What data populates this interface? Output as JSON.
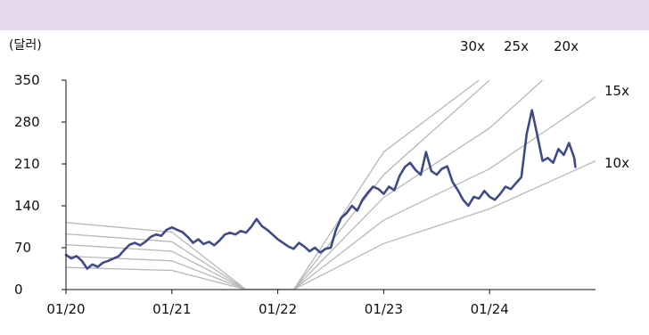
{
  "header": {
    "band_color": "#e6d8ec"
  },
  "chart_data": {
    "type": "line",
    "title": "",
    "unit_label": "(달러)",
    "xlabel": "",
    "ylabel": "",
    "ylim": [
      0,
      350
    ],
    "yticks": [
      0,
      70,
      140,
      210,
      280,
      350
    ],
    "x_tick_labels": [
      "01/20",
      "01/21",
      "01/22",
      "01/23",
      "01/24"
    ],
    "x_tick_years": [
      2020,
      2021,
      2022,
      2023,
      2024
    ],
    "xlim_years": [
      2020.0,
      2025.0
    ],
    "grid": false,
    "band_labels": [
      "30x",
      "25x",
      "20x",
      "15x",
      "10x"
    ],
    "series": [
      {
        "name": "",
        "color": "#3f4b86",
        "points": [
          [
            2020.0,
            58
          ],
          [
            2020.05,
            52
          ],
          [
            2020.1,
            56
          ],
          [
            2020.15,
            48
          ],
          [
            2020.2,
            35
          ],
          [
            2020.25,
            42
          ],
          [
            2020.3,
            38
          ],
          [
            2020.35,
            45
          ],
          [
            2020.4,
            48
          ],
          [
            2020.45,
            52
          ],
          [
            2020.5,
            56
          ],
          [
            2020.55,
            66
          ],
          [
            2020.6,
            75
          ],
          [
            2020.65,
            78
          ],
          [
            2020.7,
            74
          ],
          [
            2020.75,
            80
          ],
          [
            2020.8,
            88
          ],
          [
            2020.85,
            92
          ],
          [
            2020.9,
            90
          ],
          [
            2020.95,
            100
          ],
          [
            2021.0,
            104
          ],
          [
            2021.05,
            100
          ],
          [
            2021.1,
            96
          ],
          [
            2021.15,
            88
          ],
          [
            2021.2,
            78
          ],
          [
            2021.25,
            84
          ],
          [
            2021.3,
            76
          ],
          [
            2021.35,
            80
          ],
          [
            2021.4,
            74
          ],
          [
            2021.45,
            82
          ],
          [
            2021.5,
            92
          ],
          [
            2021.55,
            95
          ],
          [
            2021.6,
            92
          ],
          [
            2021.65,
            98
          ],
          [
            2021.7,
            95
          ],
          [
            2021.75,
            105
          ],
          [
            2021.8,
            118
          ],
          [
            2021.85,
            106
          ],
          [
            2021.9,
            100
          ],
          [
            2021.95,
            92
          ],
          [
            2022.0,
            84
          ],
          [
            2022.05,
            78
          ],
          [
            2022.1,
            72
          ],
          [
            2022.15,
            68
          ],
          [
            2022.2,
            78
          ],
          [
            2022.25,
            72
          ],
          [
            2022.3,
            64
          ],
          [
            2022.35,
            70
          ],
          [
            2022.4,
            62
          ],
          [
            2022.45,
            68
          ],
          [
            2022.5,
            70
          ],
          [
            2022.55,
            100
          ],
          [
            2022.6,
            120
          ],
          [
            2022.65,
            128
          ],
          [
            2022.7,
            140
          ],
          [
            2022.75,
            132
          ],
          [
            2022.8,
            150
          ],
          [
            2022.85,
            162
          ],
          [
            2022.9,
            172
          ],
          [
            2022.95,
            168
          ],
          [
            2023.0,
            160
          ],
          [
            2023.05,
            172
          ],
          [
            2023.1,
            166
          ],
          [
            2023.15,
            190
          ],
          [
            2023.2,
            205
          ],
          [
            2023.25,
            212
          ],
          [
            2023.3,
            200
          ],
          [
            2023.35,
            192
          ],
          [
            2023.4,
            230
          ],
          [
            2023.45,
            198
          ],
          [
            2023.5,
            192
          ],
          [
            2023.55,
            202
          ],
          [
            2023.6,
            206
          ],
          [
            2023.65,
            180
          ],
          [
            2023.7,
            166
          ],
          [
            2023.75,
            150
          ],
          [
            2023.8,
            140
          ],
          [
            2023.85,
            155
          ],
          [
            2023.9,
            152
          ],
          [
            2023.95,
            165
          ],
          [
            2024.0,
            155
          ],
          [
            2024.05,
            150
          ],
          [
            2024.1,
            160
          ],
          [
            2024.15,
            172
          ],
          [
            2024.2,
            168
          ],
          [
            2024.25,
            178
          ],
          [
            2024.3,
            188
          ],
          [
            2024.35,
            260
          ],
          [
            2024.4,
            300
          ],
          [
            2024.45,
            258
          ],
          [
            2024.5,
            215
          ],
          [
            2024.55,
            220
          ],
          [
            2024.6,
            212
          ],
          [
            2024.65,
            235
          ],
          [
            2024.7,
            225
          ],
          [
            2024.75,
            245
          ],
          [
            2024.8,
            220
          ],
          [
            2024.81,
            205
          ]
        ]
      }
    ],
    "bands": [
      {
        "name": "30x",
        "points": [
          [
            2020.0,
            112
          ],
          [
            2021.0,
            96
          ],
          [
            2021.7,
            0
          ],
          [
            2022.15,
            0
          ],
          [
            2023.0,
            230
          ],
          [
            2023.9,
            350
          ]
        ]
      },
      {
        "name": "25x",
        "points": [
          [
            2020.0,
            93
          ],
          [
            2021.0,
            80
          ],
          [
            2021.7,
            0
          ],
          [
            2022.15,
            0
          ],
          [
            2023.0,
            192
          ],
          [
            2024.0,
            350
          ]
        ]
      },
      {
        "name": "20x",
        "points": [
          [
            2020.0,
            75
          ],
          [
            2021.0,
            64
          ],
          [
            2021.7,
            0
          ],
          [
            2022.15,
            0
          ],
          [
            2023.0,
            154
          ],
          [
            2024.0,
            270
          ],
          [
            2024.5,
            350
          ]
        ]
      },
      {
        "name": "15x",
        "points": [
          [
            2020.0,
            56
          ],
          [
            2021.0,
            48
          ],
          [
            2021.7,
            0
          ],
          [
            2022.15,
            0
          ],
          [
            2023.0,
            116
          ],
          [
            2024.0,
            202
          ],
          [
            2025.0,
            322
          ]
        ]
      },
      {
        "name": "10x",
        "points": [
          [
            2020.0,
            37
          ],
          [
            2021.0,
            32
          ],
          [
            2021.7,
            0
          ],
          [
            2022.15,
            0
          ],
          [
            2023.0,
            77
          ],
          [
            2024.0,
            135
          ],
          [
            2025.0,
            215
          ]
        ]
      }
    ],
    "band_color": "#b8b8b8"
  }
}
